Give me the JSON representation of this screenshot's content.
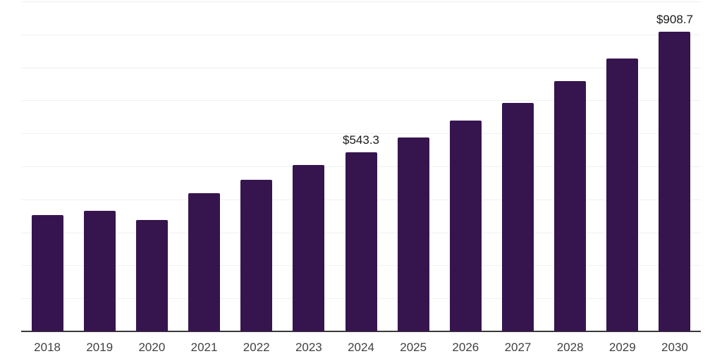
{
  "chart_data": {
    "type": "bar",
    "title": "",
    "xlabel": "",
    "ylabel": "",
    "categories": [
      "2018",
      "2019",
      "2020",
      "2021",
      "2022",
      "2023",
      "2024",
      "2025",
      "2026",
      "2027",
      "2028",
      "2029",
      "2030"
    ],
    "values": [
      352,
      366,
      338,
      418,
      459,
      505,
      543.3,
      588,
      638,
      693,
      758,
      827,
      908.7
    ],
    "data_labels": [
      "",
      "",
      "",
      "",
      "",
      "",
      "$543.3",
      "",
      "",
      "",
      "",
      "",
      "$908.7"
    ],
    "ylim": [
      0,
      1000
    ],
    "gridline_step": 100,
    "grid": "horizontal only, light gray, no y-axis tick labels",
    "legend": "none",
    "colors": {
      "bar": "#36154F",
      "gridline": "#f0f0f0",
      "axis_line": "#3a3a3a",
      "tick_label": "#414141",
      "data_label": "#1a1a1a",
      "background": "#ffffff"
    }
  }
}
